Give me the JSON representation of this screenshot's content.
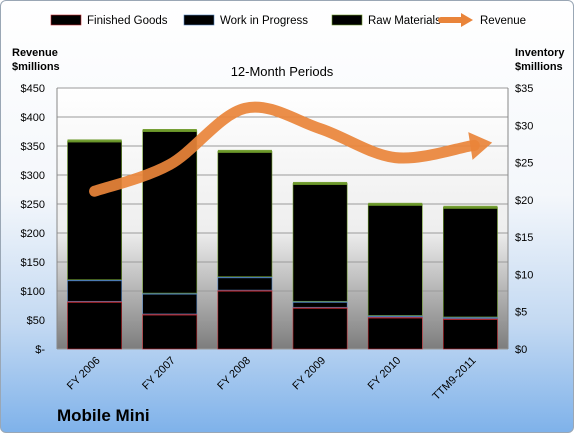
{
  "chart_data": {
    "type": "bar",
    "title": "12-Month Periods",
    "categories": [
      "FY 2006",
      "FY 2007",
      "FY 2008",
      "FY 2009",
      "FY 2010",
      "TTM9-2011"
    ],
    "series": [
      {
        "name": "Finished Goods",
        "type": "stacked-bar",
        "axis": "right",
        "color": "#c0282d",
        "values": [
          6.4,
          4.7,
          7.9,
          5.6,
          4.3,
          4.1
        ]
      },
      {
        "name": "Work in Progress",
        "type": "stacked-bar",
        "axis": "right",
        "color": "#4f81bd",
        "values": [
          2.9,
          2.8,
          1.8,
          0.8,
          0.2,
          0.2
        ]
      },
      {
        "name": "Raw Materials",
        "type": "stacked-bar",
        "axis": "right",
        "color": "#6e9a2b",
        "values": [
          18.6,
          21.8,
          16.8,
          15.8,
          14.9,
          14.7
        ]
      },
      {
        "name": "Revenue",
        "type": "line",
        "axis": "left",
        "color": "#e9843a",
        "values": [
          272,
          318,
          415,
          380,
          330,
          350
        ]
      }
    ],
    "ylabel_left": "Revenue\n$millions",
    "ylabel_right": "Inventory\n$millions",
    "ylim_left": [
      0,
      450
    ],
    "ylim_right": [
      0,
      35
    ],
    "yticks_left": [
      "$-",
      "$50",
      "$100",
      "$150",
      "$200",
      "$250",
      "$300",
      "$350",
      "$400",
      "$450"
    ],
    "yticks_right": [
      "$0",
      "$5",
      "$10",
      "$15",
      "$20",
      "$25",
      "$30",
      "$35"
    ],
    "legend": "top",
    "grid": true
  },
  "company": "Mobile Mini"
}
